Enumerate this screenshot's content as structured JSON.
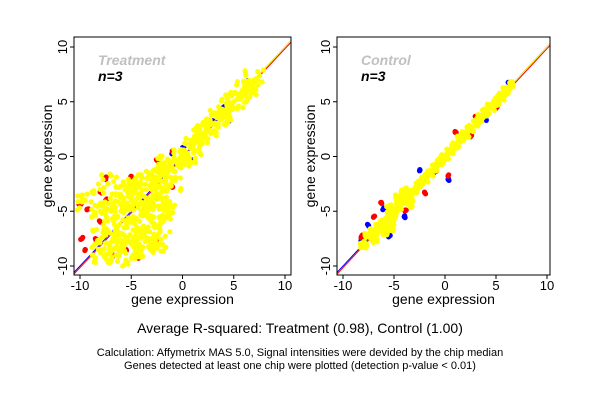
{
  "chart_data": [
    {
      "type": "scatter",
      "title": "Treatment",
      "subtitle": "n=3",
      "xlabel": "gene expression",
      "ylabel": "gene expression",
      "xlim": [
        -10.8,
        10.8
      ],
      "ylim": [
        -10.8,
        10.8
      ],
      "xticks": [
        -10,
        -5,
        0,
        5,
        10
      ],
      "yticks": [
        -10,
        -5,
        0,
        5,
        10
      ],
      "grid": false,
      "reference_line": "y = x",
      "series": [
        {
          "color": "#0000ff",
          "points": [
            [
              6.5,
              6.8
            ],
            [
              6.2,
              6.6
            ],
            [
              4,
              4.5
            ],
            [
              3,
              3.2
            ],
            [
              1,
              -0.3
            ],
            [
              4.5,
              3.2
            ],
            [
              0,
              0.8
            ],
            [
              -1,
              0.3
            ]
          ]
        },
        {
          "color": "#ff0000",
          "points": [
            [
              -10,
              -4.3
            ],
            [
              -9.3,
              -4.8
            ],
            [
              -9.8,
              -7.5
            ],
            [
              -9.5,
              -8.5
            ],
            [
              -8,
              -3.2
            ],
            [
              -7.5,
              -2
            ],
            [
              -5,
              -1.8
            ],
            [
              -2.5,
              -0.3
            ],
            [
              -1,
              0.5
            ],
            [
              -1,
              -2.8
            ],
            [
              -2,
              -5.5
            ],
            [
              -2.5,
              -7.5
            ],
            [
              -4.3,
              -9.3
            ],
            [
              -6.7,
              -9
            ],
            [
              -8.5,
              -7.5
            ],
            [
              -8,
              -6
            ],
            [
              -7.5,
              -4
            ],
            [
              -3,
              -8.2
            ],
            [
              -5.5,
              -8.5
            ]
          ]
        },
        {
          "color": "#ffff00",
          "points": [
            [
              -7,
              -5
            ],
            [
              -7,
              -7
            ],
            [
              -6.5,
              -3.5
            ],
            [
              -6,
              -5
            ],
            [
              -6,
              -7
            ],
            [
              -6,
              -8.3
            ],
            [
              -5.5,
              -3
            ],
            [
              -5,
              -4
            ],
            [
              -5,
              -6
            ],
            [
              -5,
              -8
            ],
            [
              -4.5,
              -2.5
            ],
            [
              -4,
              -3.5
            ],
            [
              -4,
              -5
            ],
            [
              -4,
              -7
            ],
            [
              -4,
              -8.5
            ],
            [
              -3.5,
              -2
            ],
            [
              -3,
              -3
            ],
            [
              -3,
              -4.5
            ],
            [
              -3,
              -6
            ],
            [
              -3,
              -7.5
            ],
            [
              -2.5,
              -2
            ],
            [
              -2,
              -3
            ],
            [
              -2,
              -4.5
            ],
            [
              -2,
              -6
            ],
            [
              -1.5,
              -1.5
            ],
            [
              -1,
              -2.3
            ],
            [
              -1,
              -1
            ],
            [
              -0.5,
              -0.5
            ],
            [
              0,
              0
            ],
            [
              0.5,
              0.3
            ],
            [
              1,
              1
            ],
            [
              1.5,
              1.5
            ],
            [
              2,
              2
            ],
            [
              2.5,
              2.5
            ],
            [
              3,
              3
            ],
            [
              3.5,
              3.5
            ],
            [
              4,
              4
            ],
            [
              4.5,
              4.5
            ],
            [
              5,
              5
            ],
            [
              5.5,
              5.5
            ],
            [
              6,
              6
            ],
            [
              6.5,
              6.3
            ],
            [
              7,
              7
            ],
            [
              -8,
              -5
            ],
            [
              -8,
              -7.5
            ],
            [
              -9.5,
              -4
            ],
            [
              -8,
              -8.8
            ],
            [
              -6.5,
              -9
            ],
            [
              -5,
              -9.3
            ],
            [
              -2.5,
              -8
            ],
            [
              -1.5,
              -5
            ],
            [
              -7.3,
              -2.5
            ],
            [
              -2,
              -0.8
            ]
          ]
        }
      ]
    },
    {
      "type": "scatter",
      "title": "Control",
      "subtitle": "n=3",
      "xlabel": "gene expression",
      "ylabel": "gene expression",
      "xlim": [
        -10.8,
        10.8
      ],
      "ylim": [
        -10.8,
        10.8
      ],
      "xticks": [
        -10,
        -5,
        0,
        5,
        10
      ],
      "yticks": [
        -10,
        -5,
        0,
        5,
        10
      ],
      "grid": false,
      "reference_line": "y = x",
      "series": [
        {
          "color": "#0000ff",
          "points": [
            [
              0.3,
              -2.1
            ],
            [
              -8.2,
              -7.6
            ],
            [
              -5.5,
              -7.3
            ],
            [
              -6,
              -4.8
            ],
            [
              -2.5,
              -1.3
            ],
            [
              4,
              3.4
            ],
            [
              6.3,
              6.7
            ],
            [
              -4,
              -5.5
            ],
            [
              -7.5,
              -6.3
            ]
          ]
        },
        {
          "color": "#ff0000",
          "points": [
            [
              0.3,
              -1.8
            ],
            [
              -8.2,
              -7.3
            ],
            [
              -7,
              -5.5
            ],
            [
              -6.2,
              -4.3
            ],
            [
              -3.8,
              -4.9
            ],
            [
              1,
              2.2
            ],
            [
              3,
              3.6
            ],
            [
              2.5,
              1.8
            ],
            [
              -1,
              -1.4
            ],
            [
              5,
              4.4
            ],
            [
              -2,
              -3.3
            ],
            [
              -6,
              -6.5
            ]
          ]
        },
        {
          "color": "#ffff00",
          "points": [
            [
              -8,
              -8
            ],
            [
              -7.5,
              -7.3
            ],
            [
              -7,
              -6.8
            ],
            [
              -6.5,
              -6.5
            ],
            [
              -6,
              -6
            ],
            [
              -5.5,
              -5.3
            ],
            [
              -5,
              -5
            ],
            [
              -4.5,
              -4.5
            ],
            [
              -4,
              -4
            ],
            [
              -3.5,
              -3.5
            ],
            [
              -3,
              -3
            ],
            [
              -2.5,
              -2.5
            ],
            [
              -2,
              -2
            ],
            [
              -1.5,
              -1.5
            ],
            [
              -1,
              -1
            ],
            [
              -0.5,
              -0.5
            ],
            [
              0,
              0
            ],
            [
              0.5,
              0.5
            ],
            [
              1,
              1
            ],
            [
              1.5,
              1.5
            ],
            [
              2,
              2
            ],
            [
              2.5,
              2.5
            ],
            [
              3,
              3
            ],
            [
              3.5,
              3.5
            ],
            [
              4,
              4
            ],
            [
              4.5,
              4.5
            ],
            [
              5,
              5
            ],
            [
              5.5,
              5.5
            ],
            [
              6,
              6
            ],
            [
              6.5,
              6.5
            ],
            [
              -5,
              -5.8
            ],
            [
              -4.5,
              -3.8
            ],
            [
              -5.5,
              -4.6
            ],
            [
              -6,
              -6.8
            ],
            [
              -3.5,
              -4.3
            ],
            [
              -4,
              -3.2
            ],
            [
              -7,
              -7.5
            ],
            [
              -5.3,
              -6.5
            ]
          ]
        }
      ]
    }
  ],
  "footer": {
    "summary": "Average R-squared: Treatment (0.98), Control (1.00)",
    "note_line1": "Calculation: Affymetrix MAS 5.0, Signal intensities were devided by the chip median",
    "note_line2": "Genes detected at least one chip were plotted (detection p-value < 0.01)"
  }
}
